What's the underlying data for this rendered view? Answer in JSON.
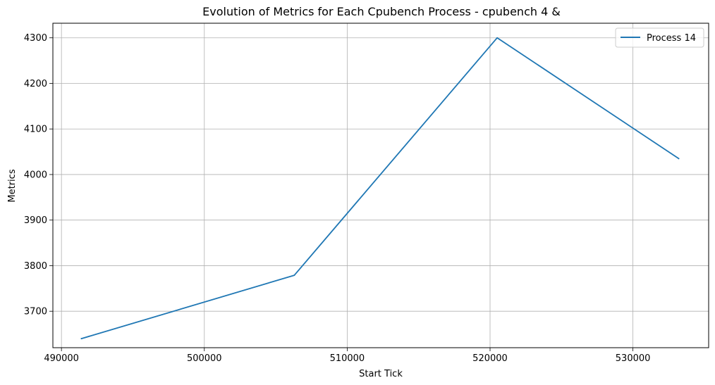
{
  "chart_data": {
    "type": "line",
    "title": "Evolution of Metrics for Each Cpubench Process - cpubench 4 &",
    "xlabel": "Start Tick",
    "ylabel": "Metrics",
    "xlim": [
      489400,
      535300
    ],
    "ylim": [
      3620,
      4332
    ],
    "xticks": [
      490000,
      500000,
      510000,
      520000,
      530000
    ],
    "yticks": [
      3700,
      3800,
      3900,
      4000,
      4100,
      4200,
      4300
    ],
    "grid": true,
    "legend_position": "top-right",
    "series": [
      {
        "name": "Process 14",
        "color": "#1f77b4",
        "x": [
          491400,
          506300,
          520500,
          533200
        ],
        "y": [
          3640,
          3779,
          4300,
          4035
        ]
      }
    ]
  }
}
